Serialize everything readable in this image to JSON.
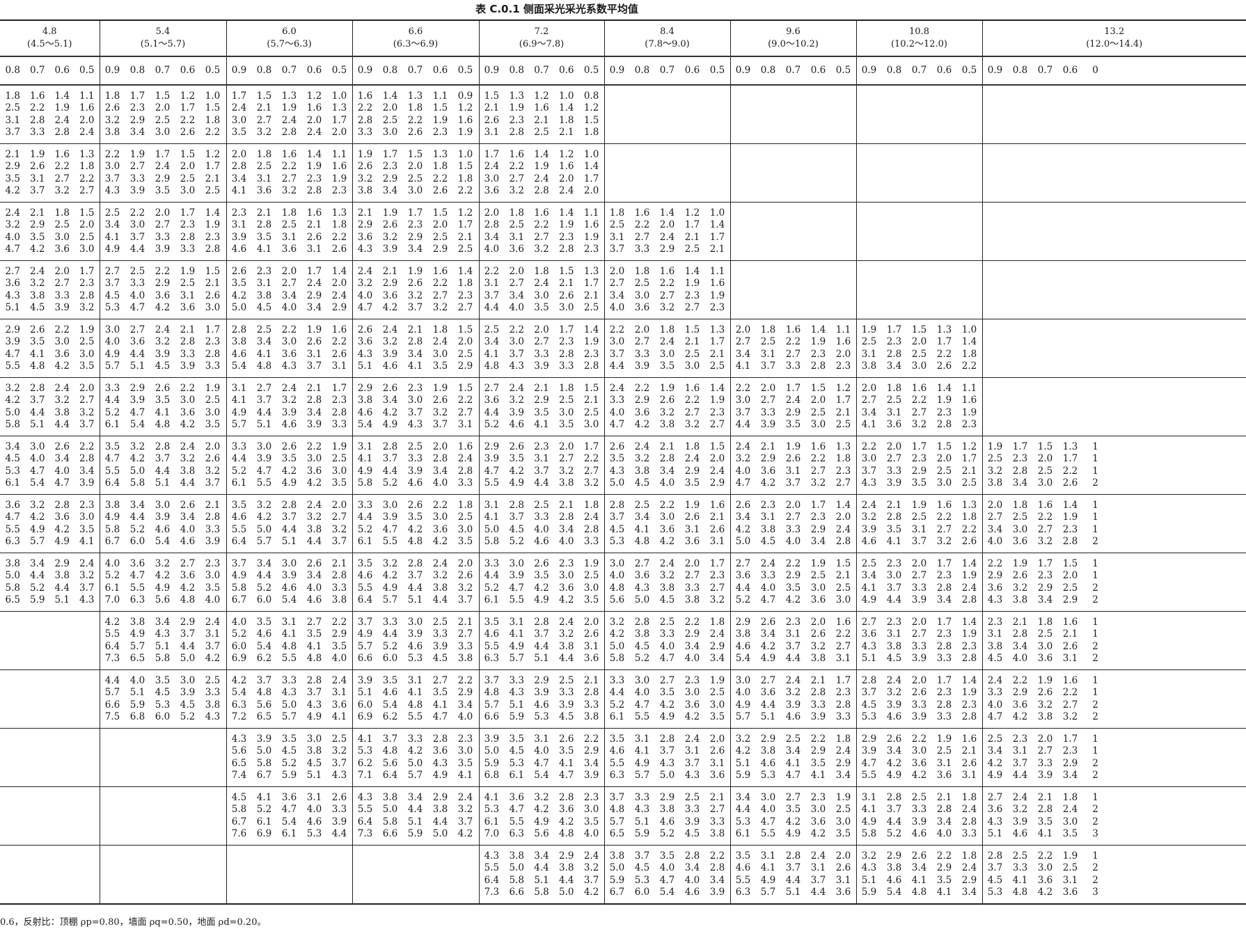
{
  "title": "表 C.0.1   侧面采光采光系数平均值",
  "columns": [
    {
      "label": "4.8",
      "range": "(4.5～5.1)",
      "sub": [
        "0.8",
        "0.7",
        "0.6",
        "0.5"
      ]
    },
    {
      "label": "5.4",
      "range": "(5.1～5.7)",
      "sub": [
        "0.9",
        "0.8",
        "0.7",
        "0.6",
        "0.5"
      ]
    },
    {
      "label": "6.0",
      "range": "(5.7～6.3)",
      "sub": [
        "0.9",
        "0.8",
        "0.7",
        "0.6",
        "0.5"
      ]
    },
    {
      "label": "6.6",
      "range": "(6.3～6.9)",
      "sub": [
        "0.9",
        "0.8",
        "0.7",
        "0.6",
        "0.5"
      ]
    },
    {
      "label": "7.2",
      "range": "(6.9～7.8)",
      "sub": [
        "0.9",
        "0.8",
        "0.7",
        "0.6",
        "0.5"
      ]
    },
    {
      "label": "8.4",
      "range": "(7.8～9.0)",
      "sub": [
        "0.9",
        "0.8",
        "0.7",
        "0.6",
        "0.5"
      ]
    },
    {
      "label": "9.6",
      "range": "(9.0～10.2)",
      "sub": [
        "0.9",
        "0.8",
        "0.7",
        "0.6",
        "0.5"
      ]
    },
    {
      "label": "10.8",
      "range": "(10.2～12.0)",
      "sub": [
        "0.9",
        "0.8",
        "0.7",
        "0.6",
        "0.5"
      ]
    },
    {
      "label": "13.2",
      "range": "(12.0～14.4)",
      "sub": [
        "0.9",
        "0.8",
        "0.7",
        "0.6",
        "0"
      ]
    }
  ],
  "rows": [
    [
      [
        "1.8 1.6 1.4 1.1",
        "2.5 2.2 1.9 1.6",
        "3.1 2.8 2.4 2.0",
        "3.7 3.3 2.8 2.4"
      ],
      [
        "1.8 1.7 1.5 1.2 1.0",
        "2.6 2.3 2.0 1.7 1.5",
        "3.2 2.9 2.5 2.2 1.8",
        "3.8 3.4 3.0 2.6 2.2"
      ],
      [
        "1.7 1.5 1.3 1.2 1.0",
        "2.4 2.1 1.9 1.6 1.3",
        "3.0 2.7 2.4 2.0 1.7",
        "3.5 3.2 2.8 2.4 2.0"
      ],
      [
        "1.6 1.4 1.3 1.1 0.9",
        "2.2 2.0 1.8 1.5 1.2",
        "2.8 2.5 2.2 1.9 1.6",
        "3.3 3.0 2.6 2.3 1.9"
      ],
      [
        "1.5 1.3 1.2 1.0 0.8",
        "2.1 1.9 1.6 1.4 1.2",
        "2.6 2.3 2.1 1.8 1.5",
        "3.1 2.8 2.5 2.1 1.8"
      ],
      null,
      null,
      null,
      null
    ],
    [
      [
        "2.1 1.9 1.6 1.3",
        "2.9 2.6 2.2 1.8",
        "3.5 3.1 2.7 2.2",
        "4.2 3.7 3.2 2.7"
      ],
      [
        "2.2 1.9 1.7 1.5 1.2",
        "3.0 2.7 2.4 2.0 1.7",
        "3.7 3.3 2.9 2.5 2.1",
        "4.3 3.9 3.5 3.0 2.5"
      ],
      [
        "2.0 1.8 1.6 1.4 1.1",
        "2.8 2.5 2.2 1.9 1.6",
        "3.4 3.1 2.7 2.3 1.9",
        "4.1 3.6 3.2 2.8 2.3"
      ],
      [
        "1.9 1.7 1.5 1.3 1.0",
        "2.6 2.3 2.0 1.8 1.5",
        "3.2 2.9 2.5 2.2 1.8",
        "3.8 3.4 3.0 2.6 2.2"
      ],
      [
        "1.7 1.6 1.4 1.2 1.0",
        "2.4 2.2 1.9 1.6 1.4",
        "3.0 2.7 2.4 2.0 1.7",
        "3.6 3.2 2.8 2.4 2.0"
      ],
      null,
      null,
      null,
      null
    ],
    [
      [
        "2.4 2.1 1.8 1.5",
        "3.2 2.9 2.5 2.0",
        "4.0 3.5 3.0 2.5",
        "4.7 4.2 3.6 3.0"
      ],
      [
        "2.5 2.2 2.0 1.7 1.4",
        "3.4 3.0 2.7 2.3 1.9",
        "4.1 3.7 3.3 2.8 2.3",
        "4.9 4.4 3.9 3.3 2.8"
      ],
      [
        "2.3 2.1 1.8 1.6 1.3",
        "3.1 2.8 2.5 2.1 1.8",
        "3.9 3.5 3.1 2.6 2.2",
        "4.6 4.1 3.6 3.1 2.6"
      ],
      [
        "2.1 1.9 1.7 1.5 1.2",
        "2.9 2.6 2.3 2.0 1.7",
        "3.6 3.2 2.9 2.5 2.1",
        "4.3 3.9 3.4 2.9 2.5"
      ],
      [
        "2.0 1.8 1.6 1.4 1.1",
        "2.8 2.5 2.2 1.9 1.6",
        "3.4 3.1 2.7 2.3 1.9",
        "4.0 3.6 3.2 2.8 2.3"
      ],
      [
        "1.8 1.6 1.4 1.2 1.0",
        "2.5 2.2 2.0 1.7 1.4",
        "3.1 2.7 2.4 2.1 1.7",
        "3.7 3.3 2.9 2.5 2.1"
      ],
      null,
      null,
      null
    ],
    [
      [
        "2.7 2.4 2.0 1.7",
        "3.6 3.2 2.7 2.3",
        "4.3 3.8 3.3 2.8",
        "5.1 4.5 3.9 3.2"
      ],
      [
        "2.7 2.5 2.2 1.9 1.5",
        "3.7 3.3 2.9 2.5 2.1",
        "4.5 4.0 3.6 3.1 2.6",
        "5.3 4.7 4.2 3.6 3.0"
      ],
      [
        "2.6 2.3 2.0 1.7 1.4",
        "3.5 3.1 2.7 2.4 2.0",
        "4.2 3.8 3.4 2.9 2.4",
        "5.0 4.5 4.0 3.4 2.9"
      ],
      [
        "2.4 2.1 1.9 1.6 1.4",
        "3.2 2.9 2.6 2.2 1.8",
        "4.0 3.6 3.2 2.7 2.3",
        "4.7 4.2 3.7 3.2 2.7"
      ],
      [
        "2.2 2.0 1.8 1.5 1.3",
        "3.1 2.7 2.4 2.1 1.7",
        "3.7 3.4 3.0 2.6 2.1",
        "4.4 4.0 3.5 3.0 2.5"
      ],
      [
        "2.0 1.8 1.6 1.4 1.1",
        "2.7 2.5 2.2 1.9 1.6",
        "3.4 3.0 2.7 2.3 1.9",
        "4.0 3.6 3.2 2.7 2.3"
      ],
      null,
      null,
      null
    ],
    [
      [
        "2.9 2.6 2.2 1.9",
        "3.9 3.5 3.0 2.5",
        "4.7 4.1 3.6 3.0",
        "5.5 4.8 4.2 3.5"
      ],
      [
        "3.0 2.7 2.4 2.1 1.7",
        "4.0 3.6 3.2 2.8 2.3",
        "4.9 4.4 3.9 3.3 2.8",
        "5.7 5.1 4.5 3.9 3.3"
      ],
      [
        "2.8 2.5 2.2 1.9 1.6",
        "3.8 3.4 3.0 2.6 2.2",
        "4.6 4.1 3.6 3.1 2.6",
        "5.4 4.8 4.3 3.7 3.1"
      ],
      [
        "2.6 2.4 2.1 1.8 1.5",
        "3.6 3.2 2.8 2.4 2.0",
        "4.3 3.9 3.4 3.0 2.5",
        "5.1 4.6 4.1 3.5 2.9"
      ],
      [
        "2.5 2.2 2.0 1.7 1.4",
        "3.4 3.0 2.7 2.3 1.9",
        "4.1 3.7 3.3 2.8 2.3",
        "4.8 4.3 3.9 3.3 2.8"
      ],
      [
        "2.2 2.0 1.8 1.5 1.3",
        "3.0 2.7 2.4 2.1 1.7",
        "3.7 3.3 3.0 2.5 2.1",
        "4.4 3.9 3.5 3.0 2.5"
      ],
      [
        "2.0 1.8 1.6 1.4 1.1",
        "2.7 2.5 2.2 1.9 1.6",
        "3.4 3.1 2.7 2.3 2.0",
        "4.1 3.7 3.3 2.8 2.3"
      ],
      [
        "1.9 1.7 1.5 1.3 1.0",
        "2.5 2.3 2.0 1.7 1.4",
        "3.1 2.8 2.5 2.2 1.8",
        "3.8 3.4 3.0 2.6 2.2"
      ],
      null
    ],
    [
      [
        "3.2 2.8 2.4 2.0",
        "4.2 3.7 3.2 2.7",
        "5.0 4.4 3.8 3.2",
        "5.8 5.1 4.4 3.7"
      ],
      [
        "3.3 2.9 2.6 2.2 1.9",
        "4.4 3.9 3.5 3.0 2.5",
        "5.2 4.7 4.1 3.6 3.0",
        "6.1 5.4 4.8 4.2 3.5"
      ],
      [
        "3.1 2.7 2.4 2.1 1.7",
        "4.1 3.7 3.2 2.8 2.3",
        "4.9 4.4 3.9 3.4 2.8",
        "5.7 5.1 4.6 3.9 3.3"
      ],
      [
        "2.9 2.6 2.3 1.9 1.5",
        "3.8 3.4 3.0 2.6 2.2",
        "4.6 4.2 3.7 3.2 2.7",
        "5.4 4.9 4.3 3.7 3.1"
      ],
      [
        "2.7 2.4 2.1 1.8 1.5",
        "3.6 3.2 2.9 2.5 2.1",
        "4.4 3.9 3.5 3.0 2.5",
        "5.2 4.6 4.1 3.5 3.0"
      ],
      [
        "2.4 2.2 1.9 1.6 1.4",
        "3.3 2.9 2.6 2.2 1.9",
        "4.0 3.6 3.2 2.7 2.3",
        "4.7 4.2 3.8 3.2 2.7"
      ],
      [
        "2.2 2.0 1.7 1.5 1.2",
        "3.0 2.7 2.4 2.0 1.7",
        "3.7 3.3 2.9 2.5 2.1",
        "4.4 3.9 3.5 3.0 2.5"
      ],
      [
        "2.0 1.8 1.6 1.4 1.1",
        "2.7 2.5 2.2 1.9 1.6",
        "3.4 3.1 2.7 2.3 1.9",
        "4.1 3.6 3.2 2.8 2.3"
      ],
      null
    ],
    [
      [
        "3.4 3.0 2.6 2.2",
        "4.5 4.0 3.4 2.8",
        "5.3 4.7 4.0 3.4",
        "6.1 5.4 4.7 3.9"
      ],
      [
        "3.5 3.2 2.8 2.4 2.0",
        "4.7 4.2 3.7 3.2 2.6",
        "5.5 5.0 4.4 3.8 3.2",
        "6.4 5.8 5.1 4.4 3.7"
      ],
      [
        "3.3 3.0 2.6 2.2 1.9",
        "4.4 3.9 3.5 3.0 2.5",
        "5.2 4.7 4.2 3.6 3.0",
        "6.1 5.5 4.9 4.2 3.5"
      ],
      [
        "3.1 2.8 2.5 2.0 1.6",
        "4.1 3.7 3.3 2.8 2.4",
        "4.9 4.4 3.9 3.4 2.8",
        "5.8 5.2 4.6 4.0 3.3"
      ],
      [
        "2.9 2.6 2.3 2.0 1.7",
        "3.9 3.5 3.1 2.7 2.2",
        "4.7 4.2 3.7 3.2 2.7",
        "5.5 4.9 4.4 3.8 3.2"
      ],
      [
        "2.6 2.4 2.1 1.8 1.5",
        "3.5 3.2 2.8 2.4 2.0",
        "4.3 3.8 3.4 2.9 2.4",
        "5.0 4.5 4.0 3.5 2.9"
      ],
      [
        "2.4 2.1 1.9 1.6 1.3",
        "3.2 2.9 2.6 2.2 1.8",
        "4.0 3.6 3.1 2.7 2.3",
        "4.7 4.2 3.7 3.2 2.7"
      ],
      [
        "2.2 2.0 1.7 1.5 1.2",
        "3.0 2.7 2.3 2.0 1.7",
        "3.7 3.3 2.9 2.5 2.1",
        "4.3 3.9 3.5 3.0 2.5"
      ],
      [
        "1.9 1.7 1.5 1.3 1",
        "2.5 2.3 2.0 1.7 1",
        "3.2 2.8 2.5 2.2 1",
        "3.8 3.4 3.0 2.6 2"
      ]
    ],
    [
      [
        "3.6 3.2 2.8 2.3",
        "4.7 4.2 3.6 3.0",
        "5.5 4.9 4.2 3.5",
        "6.3 5.7 4.9 4.1"
      ],
      [
        "3.8 3.4 3.0 2.6 2.1",
        "4.9 4.4 3.9 3.4 2.8",
        "5.8 5.2 4.6 4.0 3.3",
        "6.7 6.0 5.4 4.6 3.9"
      ],
      [
        "3.5 3.2 2.8 2.4 2.0",
        "4.6 4.2 3.7 3.2 2.7",
        "5.5 5.0 4.4 3.8 3.2",
        "6.4 5.7 5.1 4.4 3.7"
      ],
      [
        "3.3 3.0 2.6 2.2 1.8",
        "4.4 3.9 3.5 3.0 2.5",
        "5.2 4.7 4.2 3.6 3.0",
        "6.1 5.5 4.8 4.2 3.5"
      ],
      [
        "3.1 2.8 2.5 2.1 1.8",
        "4.1 3.7 3.3 2.8 2.4",
        "5.0 4.5 4.0 3.4 2.8",
        "5.8 5.2 4.6 4.0 3.3"
      ],
      [
        "2.8 2.5 2.2 1.9 1.6",
        "3.7 3.4 3.0 2.6 2.1",
        "4.5 4.1 3.6 3.1 2.6",
        "5.3 4.8 4.2 3.6 3.1"
      ],
      [
        "2.6 2.3 2.0 1.7 1.4",
        "3.4 3.1 2.7 2.3 2.0",
        "4.2 3.8 3.3 2.9 2.4",
        "5.0 4.5 4.0 3.4 2.8"
      ],
      [
        "2.4 2.1 1.9 1.6 1.3",
        "3.2 2.8 2.5 2.2 1.8",
        "3.9 3.5 3.1 2.7 2.2",
        "4.6 4.1 3.7 3.2 2.6"
      ],
      [
        "2.0 1.8 1.6 1.4 1",
        "2.7 2.5 2.2 1.9 1",
        "3.4 3.0 2.7 2.3 1",
        "4.0 3.6 3.2 2.8 2"
      ]
    ],
    [
      [
        "3.8 3.4 2.9 2.4",
        "5.0 4.4 3.8 3.2",
        "5.8 5.2 4.4 3.7",
        "6.5 5.9 5.1 4.3"
      ],
      [
        "4.0 3.6 3.2 2.7 2.3",
        "5.2 4.7 4.2 3.6 3.0",
        "6.1 5.5 4.9 4.2 3.5",
        "7.0 6.3 5.6 4.8 4.0"
      ],
      [
        "3.7 3.4 3.0 2.6 2.1",
        "4.9 4.4 3.9 3.4 2.8",
        "5.8 5.2 4.6 4.0 3.3",
        "6.7 6.0 5.4 4.6 3.8"
      ],
      [
        "3.5 3.2 2.8 2.4 2.0",
        "4.6 4.2 3.7 3.2 2.6",
        "5.5 4.9 4.4 3.8 3.2",
        "6.4 5.7 5.1 4.4 3.7"
      ],
      [
        "3.3 3.0 2.6 2.3 1.9",
        "4.4 3.9 3.5 3.0 2.5",
        "5.2 4.7 4.2 3.6 3.0",
        "6.1 5.5 4.9 4.2 3.5"
      ],
      [
        "3.0 2.7 2.4 2.0 1.7",
        "4.0 3.6 3.2 2.7 2.3",
        "4.8 4.3 3.8 3.3 2.7",
        "5.6 5.0 4.5 3.8 3.2"
      ],
      [
        "2.7 2.4 2.2 1.9 1.5",
        "3.6 3.3 2.9 2.5 2.1",
        "4.4 4.0 3.5 3.0 2.5",
        "5.2 4.7 4.2 3.6 3.0"
      ],
      [
        "2.5 2.3 2.0 1.7 1.4",
        "3.4 3.0 2.7 2.3 1.9",
        "4.1 3.7 3.3 2.8 2.4",
        "4.9 4.4 3.9 3.4 2.8"
      ],
      [
        "2.2 1.9 1.7 1.5 1",
        "2.9 2.6 2.3 2.0 1",
        "3.6 3.2 2.9 2.5 2",
        "4.3 3.8 3.4 2.9 2"
      ]
    ],
    [
      null,
      [
        "4.2 3.8 3.4 2.9 2.4",
        "5.5 4.9 4.3 3.7 3.1",
        "6.4 5.7 5.1 4.4 3.7",
        "7.3 6.5 5.8 5.0 4.2"
      ],
      [
        "4.0 3.5 3.1 2.7 2.2",
        "5.2 4.6 4.1 3.5 2.9",
        "6.0 5.4 4.8 4.1 3.5",
        "6.9 6.2 5.5 4.8 4.0"
      ],
      [
        "3.7 3.3 3.0 2.5 2.1",
        "4.9 4.4 3.9 3.3 2.7",
        "5.7 5.2 4.6 3.9 3.3",
        "6.6 6.0 5.3 4.5 3.8"
      ],
      [
        "3.5 3.1 2.8 2.4 2.0",
        "4.6 4.1 3.7 3.2 2.6",
        "5.5 4.9 4.4 3.8 3.1",
        "6.3 5.7 5.1 4.4 3.6"
      ],
      [
        "3.2 2.8 2.5 2.2 1.8",
        "4.2 3.8 3.3 2.9 2.4",
        "5.0 4.5 4.0 3.4 2.9",
        "5.8 5.2 4.7 4.0 3.4"
      ],
      [
        "2.9 2.6 2.3 2.0 1.6",
        "3.8 3.4 3.1 2.6 2.2",
        "4.6 4.2 3.7 3.2 2.7",
        "5.4 4.9 4.4 3.8 3.1"
      ],
      [
        "2.7 2.3 2.0 1.7 1.4",
        "3.6 3.1 2.7 2.3 1.9",
        "4.3 3.8 3.3 2.8 2.3",
        "5.1 4.5 3.9 3.3 2.8"
      ],
      [
        "2.3 2.1 1.8 1.6 1",
        "3.1 2.8 2.5 2.1 1",
        "3.8 3.4 3.0 2.6 2",
        "4.5 4.0 3.6 3.1 2"
      ]
    ],
    [
      null,
      [
        "4.4 4.0 3.5 3.0 2.5",
        "5.7 5.1 4.5 3.9 3.3",
        "6.6 5.9 5.3 4.5 3.8",
        "7.5 6.8 6.0 5.2 4.3"
      ],
      [
        "4.2 3.7 3.3 2.8 2.4",
        "5.4 4.8 4.3 3.7 3.1",
        "6.3 5.6 5.0 4.3 3.6",
        "7.2 6.5 5.7 4.9 4.1"
      ],
      [
        "3.9 3.5 3.1 2.7 2.2",
        "5.1 4.6 4.1 3.5 2.9",
        "6.0 5.4 4.8 4.1 3.4",
        "6.9 6.2 5.5 4.7 4.0"
      ],
      [
        "3.7 3.3 2.9 2.5 2.1",
        "4.8 4.3 3.9 3.3 2.8",
        "5.7 5.1 4.6 3.9 3.3",
        "6.6 5.9 5.3 4.5 3.8"
      ],
      [
        "3.3 3.0 2.7 2.3 1.9",
        "4.4 4.0 3.5 3.0 2.5",
        "5.2 4.7 4.2 3.6 3.0",
        "6.1 5.5 4.9 4.2 3.5"
      ],
      [
        "3.0 2.7 2.4 2.1 1.7",
        "4.0 3.6 3.2 2.8 2.3",
        "4.9 4.4 3.9 3.3 2.8",
        "5.7 5.1 4.6 3.9 3.3"
      ],
      [
        "2.8 2.4 2.0 1.7 1.4",
        "3.7 3.2 2.6 2.3 1.9",
        "4.5 3.9 3.3 2.8 2.3",
        "5.3 4.6 3.9 3.3 2.8"
      ],
      [
        "2.4 2.2 1.9 1.6 1",
        "3.3 2.9 2.6 2.2 1",
        "4.0 3.6 3.2 2.7 2",
        "4.7 4.2 3.8 3.2 2"
      ]
    ],
    [
      null,
      null,
      [
        "4.3 3.9 3.5 3.0 2.5",
        "5.6 5.0 4.5 3.8 3.2",
        "6.5 5.8 5.2 4.5 3.7",
        "7.4 6.7 5.9 5.1 4.3"
      ],
      [
        "4.1 3.7 3.3 2.8 2.3",
        "5.3 4.8 4.2 3.6 3.0",
        "6.2 5.6 5.0 4.3 3.5",
        "7.1 6.4 5.7 4.9 4.1"
      ],
      [
        "3.9 3.5 3.1 2.6 2.2",
        "5.0 4.5 4.0 3.5 2.9",
        "5.9 5.3 4.7 4.1 3.4",
        "6.8 6.1 5.4 4.7 3.9"
      ],
      [
        "3.5 3.1 2.8 2.4 2.0",
        "4.6 4.1 3.7 3.1 2.6",
        "5.5 4.9 4.3 3.7 3.1",
        "6.3 5.7 5.0 4.3 3.6"
      ],
      [
        "3.2 2.9 2.5 2.2 1.8",
        "4.2 3.8 3.4 2.9 2.4",
        "5.1 4.6 4.1 3.5 2.9",
        "5.9 5.3 4.7 4.1 3.4"
      ],
      [
        "2.9 2.6 2.2 1.9 1.6",
        "3.9 3.4 3.0 2.5 2.1",
        "4.7 4.2 3.6 3.1 2.6",
        "5.5 4.9 4.2 3.6 3.1"
      ],
      [
        "2.5 2.3 2.0 1.7 1",
        "3.4 3.1 2.7 2.3 1",
        "4.2 3.7 3.3 2.9 2",
        "4.9 4.4 3.9 3.4 2"
      ]
    ],
    [
      null,
      null,
      [
        "4.5 4.1 3.6 3.1 2.6",
        "5.8 5.2 4.7 4.0 3.3",
        "6.7 6.1 5.4 4.6 3.9",
        "7.6 6.9 6.1 5.3 4.4"
      ],
      [
        "4.3 3.8 3.4 2.9 2.4",
        "5.5 5.0 4.4 3.8 3.2",
        "6.4 5.8 5.1 4.4 3.7",
        "7.3 6.6 5.9 5.0 4.2"
      ],
      [
        "4.1 3.6 3.2 2.8 2.3",
        "5.3 4.7 4.2 3.6 3.0",
        "6.1 5.5 4.9 4.2 3.5",
        "7.0 6.3 5.6 4.8 4.0"
      ],
      [
        "3.7 3.3 2.9 2.5 2.1",
        "4.8 4.3 3.8 3.3 2.7",
        "5.7 5.1 4.6 3.9 3.3",
        "6.5 5.9 5.2 4.5 3.8"
      ],
      [
        "3.4 3.0 2.7 2.3 1.9",
        "4.4 4.0 3.5 3.0 2.5",
        "5.3 4.7 4.2 3.6 3.0",
        "6.1 5.5 4.9 4.2 3.5"
      ],
      [
        "3.1 2.8 2.5 2.1 1.8",
        "4.1 3.7 3.3 2.8 2.4",
        "4.9 4.4 3.9 3.4 2.8",
        "5.8 5.2 4.6 4.0 3.3"
      ],
      [
        "2.7 2.4 2.1 1.8 1",
        "3.6 3.2 2.8 2.4 2",
        "4.3 3.9 3.5 3.0 2",
        "5.1 4.6 4.1 3.5 3"
      ]
    ],
    [
      null,
      null,
      null,
      null,
      [
        "4.3 3.8 3.4 2.9 2.4",
        "5.5 5.0 4.4 3.8 3.2",
        "6.4 5.8 5.1 4.4 3.7",
        "7.3 6.6 5.8 5.0 4.2"
      ],
      [
        "3.8 3.7 3.5 2.8 2.2",
        "5.0 4.5 4.0 3.4 2.8",
        "5.9 5.3 4.7 4.0 3.4",
        "6.7 6.0 5.4 4.6 3.9"
      ],
      [
        "3.5 3.1 2.8 2.4 2.0",
        "4.6 4.1 3.7 3.1 2.6",
        "5.5 4.9 4.4 3.7 3.1",
        "6.3 5.7 5.1 4.4 3.6"
      ],
      [
        "3.2 2.9 2.6 2.2 1.8",
        "4.3 3.8 3.4 2.9 2.4",
        "5.1 4.6 4.1 3.5 2.9",
        "5.9 5.4 4.8 4.1 3.4"
      ],
      [
        "2.8 2.5 2.2 1.9 1",
        "3.7 3.3 3.0 2.5 2",
        "4.5 4.1 3.6 3.1 2",
        "5.3 4.8 4.2 3.6 3"
      ]
    ]
  ],
  "footer": "0.6，反射比：顶棚 ρp=0.80，墙面 ρq=0.50，地面 ρd=0.20。"
}
